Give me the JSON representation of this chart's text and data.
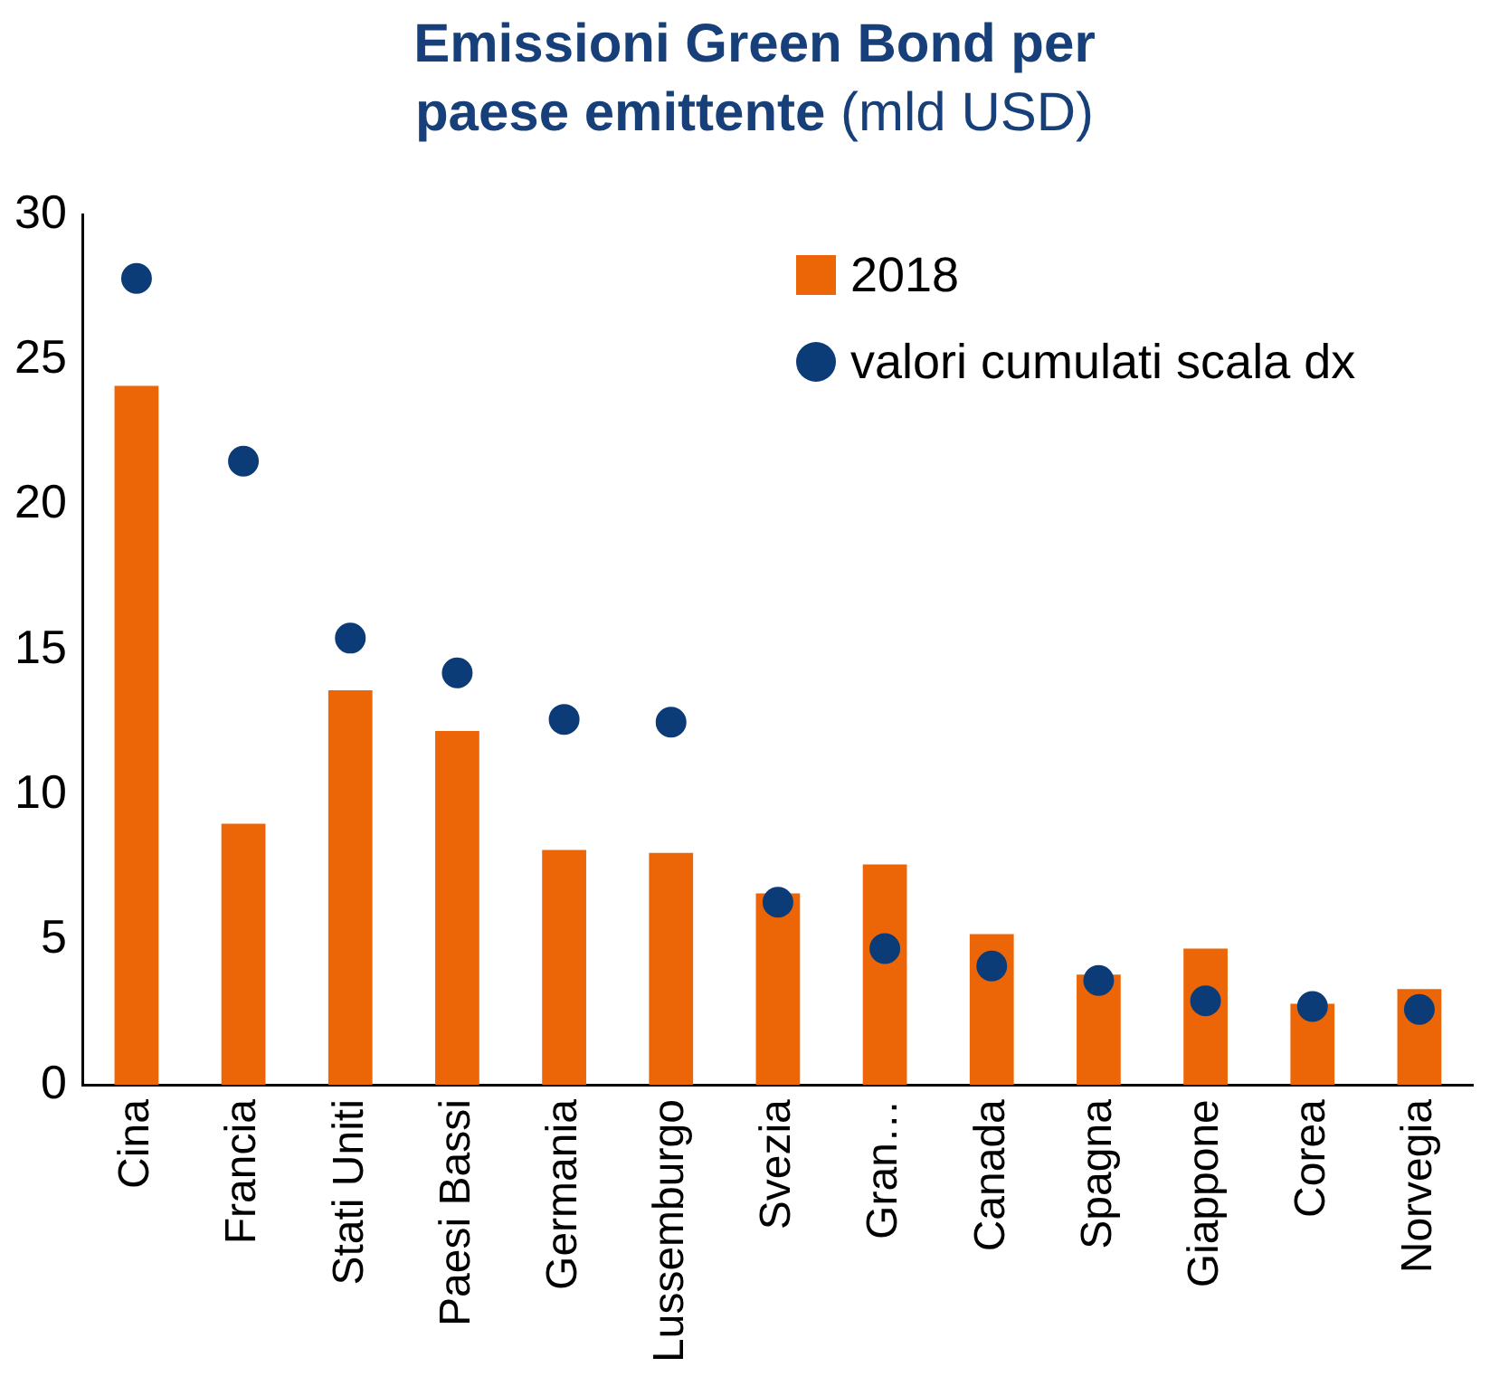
{
  "chart_data": {
    "type": "bar",
    "title": "Emissioni Green Bond per",
    "subtitle": "paese emittente",
    "ylabel": "(mld USD)",
    "categories": [
      "Cina",
      "Francia",
      "Stati Uniti",
      "Paesi Bassi",
      "Germania",
      "Lussemburgo",
      "Svezia",
      "Gran…",
      "Canada",
      "Spagna",
      "Giappone",
      "Corea",
      "Norvegia"
    ],
    "series": [
      {
        "name": "2018",
        "color": "#ec6608",
        "values": [
          24.1,
          9.0,
          13.6,
          12.2,
          8.1,
          8.0,
          6.6,
          7.6,
          5.2,
          3.8,
          4.7,
          2.8,
          3.3
        ]
      },
      {
        "name": "valori cumulati scala dx",
        "type": "scatter",
        "color": "#0c3c78",
        "values": [
          27.8,
          21.5,
          15.4,
          14.2,
          12.6,
          12.5,
          6.3,
          4.7,
          4.1,
          3.6,
          2.9,
          2.7,
          2.6
        ]
      }
    ],
    "ylim": [
      0,
      30
    ],
    "yticks": [
      0,
      5,
      10,
      15,
      20,
      25,
      30
    ],
    "grid": false,
    "legend": "top right",
    "marker": "circle"
  }
}
